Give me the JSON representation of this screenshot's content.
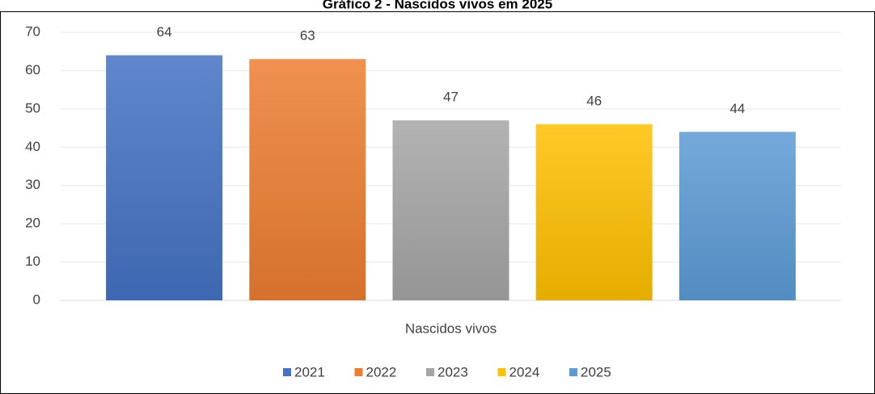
{
  "chart_data": {
    "type": "bar",
    "title": "Gráfico 2 - Nascidos vivos em 2025",
    "categories": [
      "Nascidos vivos"
    ],
    "series": [
      {
        "name": "2021",
        "color": "#4472c4",
        "values": [
          64
        ]
      },
      {
        "name": "2022",
        "color": "#ed7d31",
        "values": [
          63
        ]
      },
      {
        "name": "2023",
        "color": "#a5a5a5",
        "values": [
          47
        ]
      },
      {
        "name": "2024",
        "color": "#ffc000",
        "values": [
          46
        ]
      },
      {
        "name": "2025",
        "color": "#5b9bd5",
        "values": [
          44
        ]
      }
    ],
    "ylim": [
      0,
      70
    ],
    "yticks": [
      0,
      10,
      20,
      30,
      40,
      50,
      60,
      70
    ],
    "grid": true,
    "legend": "bottom"
  }
}
